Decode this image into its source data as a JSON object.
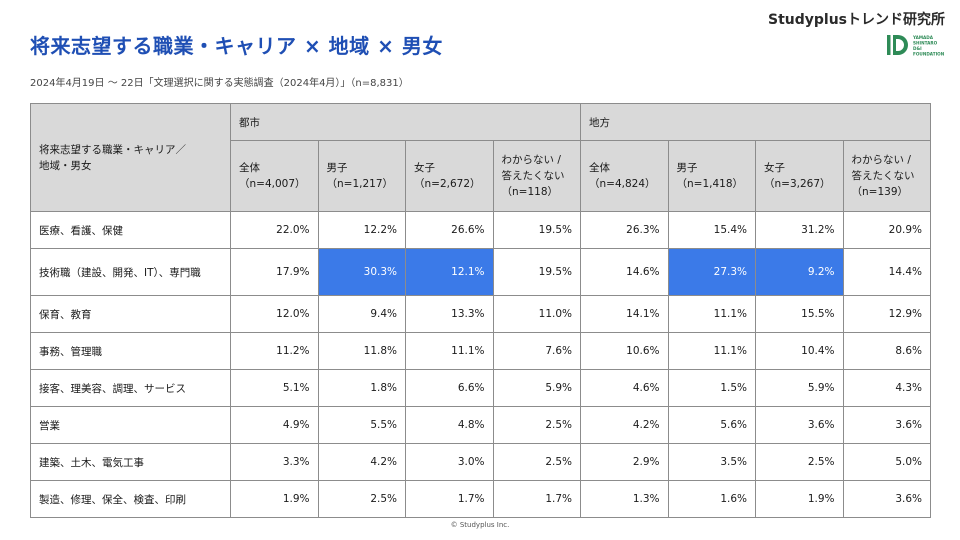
{
  "page": {
    "title": "将来志望する職業・キャリア × 地域 × 男女",
    "brand": "Studyplusトレンド研究所",
    "subtitle": "2024年4月19日 〜 22日「文理選択に関する実態調査（2024年4月）」（n=8,831）",
    "footer": "© Studyplus Inc.",
    "logo_lines": [
      "YAMADA",
      "SHINTARO",
      "D&I",
      "FOUNDATION"
    ]
  },
  "colors": {
    "accent": "#1f4fb4",
    "highlight": "#3b7ae8",
    "header_bg": "#d9d9d9",
    "logo_green": "#2e8b57"
  },
  "table": {
    "corner_label": [
      "将来志望する職業・キャリア／",
      "地域・男女"
    ],
    "regions": [
      "都市",
      "地方"
    ],
    "columns": [
      [
        "全体",
        "（n=4,007）"
      ],
      [
        "男子",
        "（n=1,217）"
      ],
      [
        "女子",
        "（n=2,672）"
      ],
      [
        "わからない /",
        "答えたくない",
        "（n=118）"
      ],
      [
        "全体",
        "（n=4,824）"
      ],
      [
        "男子",
        "（n=1,418）"
      ],
      [
        "女子",
        "（n=3,267）"
      ],
      [
        "わからない /",
        "答えたくない",
        "（n=139）"
      ]
    ],
    "rows": [
      {
        "label": "医療、看護、保健",
        "values": [
          "22.0%",
          "12.2%",
          "26.6%",
          "19.5%",
          "26.3%",
          "15.4%",
          "31.2%",
          "20.9%"
        ],
        "highlight": []
      },
      {
        "label": "技術職（建設、開発、IT）、専門職",
        "values": [
          "17.9%",
          "30.3%",
          "12.1%",
          "19.5%",
          "14.6%",
          "27.3%",
          "9.2%",
          "14.4%"
        ],
        "highlight": [
          1,
          2,
          5,
          6
        ]
      },
      {
        "label": "保育、教育",
        "values": [
          "12.0%",
          "9.4%",
          "13.3%",
          "11.0%",
          "14.1%",
          "11.1%",
          "15.5%",
          "12.9%"
        ],
        "highlight": []
      },
      {
        "label": "事務、管理職",
        "values": [
          "11.2%",
          "11.8%",
          "11.1%",
          "7.6%",
          "10.6%",
          "11.1%",
          "10.4%",
          "8.6%"
        ],
        "highlight": []
      },
      {
        "label": "接客、理美容、調理、サービス",
        "values": [
          "5.1%",
          "1.8%",
          "6.6%",
          "5.9%",
          "4.6%",
          "1.5%",
          "5.9%",
          "4.3%"
        ],
        "highlight": []
      },
      {
        "label": "営業",
        "values": [
          "4.9%",
          "5.5%",
          "4.8%",
          "2.5%",
          "4.2%",
          "5.6%",
          "3.6%",
          "3.6%"
        ],
        "highlight": []
      },
      {
        "label": "建築、土木、電気工事",
        "values": [
          "3.3%",
          "4.2%",
          "3.0%",
          "2.5%",
          "2.9%",
          "3.5%",
          "2.5%",
          "5.0%"
        ],
        "highlight": []
      },
      {
        "label": "製造、修理、保全、検査、印刷",
        "values": [
          "1.9%",
          "2.5%",
          "1.7%",
          "1.7%",
          "1.3%",
          "1.6%",
          "1.9%",
          "3.6%"
        ],
        "highlight": []
      }
    ]
  }
}
